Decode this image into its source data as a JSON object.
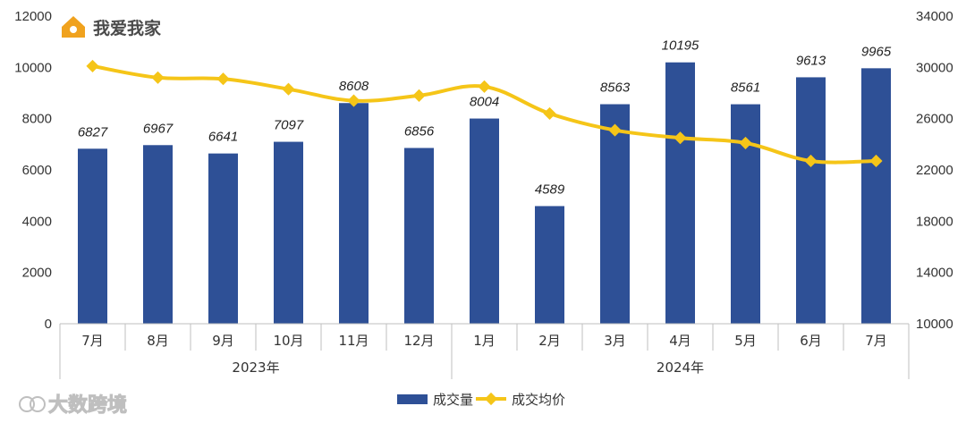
{
  "brand": {
    "name": "我爱我家",
    "logo_icon": "house-logo-icon",
    "logo_color": "#f0a21e"
  },
  "watermark": {
    "text": "大数跨境"
  },
  "colors": {
    "bar": "#2e5096",
    "line": "#f5c518",
    "axis": "#bfbfbf"
  },
  "chart_data": {
    "type": "bar",
    "title": "",
    "categories": [
      "7月",
      "8月",
      "9月",
      "10月",
      "11月",
      "12月",
      "1月",
      "2月",
      "3月",
      "4月",
      "5月",
      "6月",
      "7月"
    ],
    "groups": [
      {
        "label": "2023年",
        "start": 0,
        "end": 5
      },
      {
        "label": "2024年",
        "start": 6,
        "end": 12
      }
    ],
    "series": [
      {
        "name": "成交量",
        "type": "bar",
        "axis": "left",
        "values": [
          6827,
          6967,
          6641,
          7097,
          8608,
          6856,
          8004,
          4589,
          8563,
          10195,
          8561,
          9613,
          9965
        ]
      },
      {
        "name": "成交均价",
        "type": "line",
        "axis": "right",
        "values": [
          30100,
          29200,
          29100,
          28300,
          27400,
          27800,
          28500,
          26400,
          25100,
          24500,
          24100,
          22700,
          22700
        ]
      }
    ],
    "y_left": {
      "min": 0,
      "max": 12000,
      "ticks": [
        0,
        2000,
        4000,
        6000,
        8000,
        10000,
        12000
      ]
    },
    "y_right": {
      "min": 10000,
      "max": 34000,
      "ticks": [
        10000,
        14000,
        18000,
        22000,
        26000,
        30000,
        34000
      ]
    },
    "legend_position": "bottom-center",
    "grid": false
  }
}
